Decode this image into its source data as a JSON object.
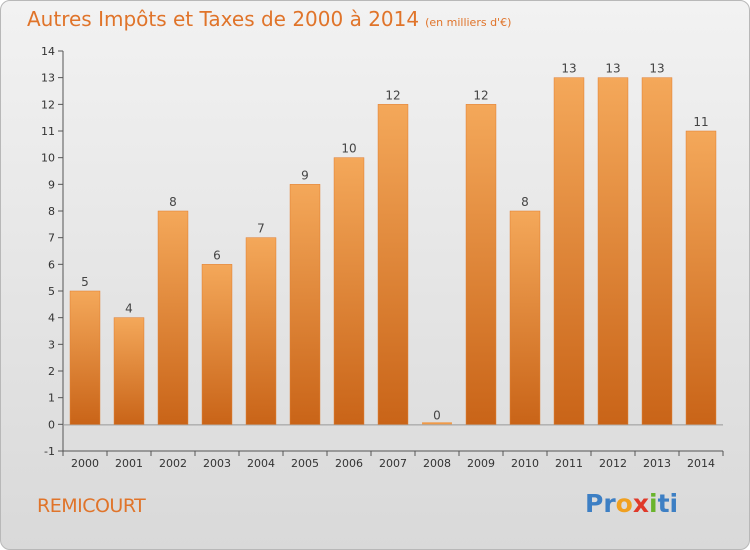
{
  "title": {
    "main": "Autres Impôts et Taxes de 2000 à 2014",
    "unit": "(en milliers d'€)"
  },
  "town": "REMICOURT",
  "logo": {
    "text": "Proxiti",
    "letters": [
      "P",
      "r",
      "o",
      "x",
      "i",
      "t",
      "i"
    ],
    "colors": [
      "#3d7fc4",
      "#3d7fc4",
      "#f0a020",
      "#e03a2a",
      "#6ab42c",
      "#3d7fc4",
      "#3d7fc4"
    ]
  },
  "chart_data": {
    "type": "bar",
    "title": "Autres Impôts et Taxes de 2000 à 2014",
    "xlabel": "",
    "ylabel": "",
    "categories": [
      "2000",
      "2001",
      "2002",
      "2003",
      "2004",
      "2005",
      "2006",
      "2007",
      "2008",
      "2009",
      "2010",
      "2011",
      "2012",
      "2013",
      "2014"
    ],
    "values": [
      5,
      4,
      8,
      6,
      7,
      9,
      10,
      12,
      0,
      12,
      8,
      13,
      13,
      13,
      11
    ],
    "data_labels": [
      "5",
      "4",
      "8",
      "6",
      "7",
      "9",
      "10",
      "12",
      "0",
      "12",
      "8",
      "13",
      "13",
      "13",
      "11"
    ],
    "ylim": [
      -1,
      14
    ],
    "y_ticks": [
      "-1",
      "0",
      "1",
      "2",
      "3",
      "4",
      "5",
      "6",
      "7",
      "8",
      "9",
      "10",
      "11",
      "12",
      "13",
      "14"
    ],
    "bar_color": "#f09a48",
    "bar_color_dark": "#c96418",
    "grid": false,
    "legend": "none"
  }
}
